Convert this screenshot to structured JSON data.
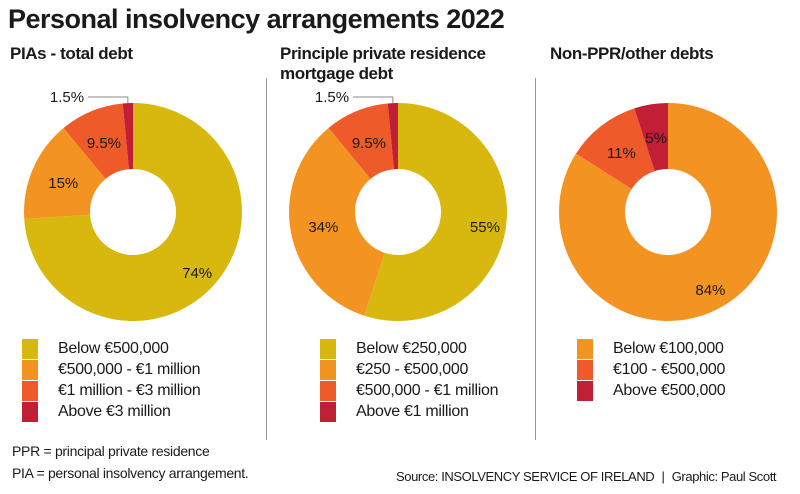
{
  "title": "Personal insolvency arrangements 2022",
  "colors": {
    "yellow": "#d8b80f",
    "orange": "#f39422",
    "redorange": "#ee5a2a",
    "darkred": "#c11f35"
  },
  "chart_data": [
    {
      "type": "pie",
      "subtitle": "PIAs - total debt",
      "categories": [
        "Below €500,000",
        "€500,000 - €1 million",
        "€1 million - €3 million",
        "Above €3 million"
      ],
      "values": [
        74,
        15,
        9.5,
        1.5
      ],
      "labels": [
        "74%",
        "15%",
        "9.5%",
        "1.5%"
      ],
      "colors": [
        "#d8b80f",
        "#f39422",
        "#ee5a2a",
        "#c11f35"
      ]
    },
    {
      "type": "pie",
      "subtitle": "Principle private residence mortgage debt",
      "categories": [
        "Below €250,000",
        "€250 - €500,000",
        "€500,000 - €1 million",
        "Above €1 million"
      ],
      "values": [
        55,
        34,
        9.5,
        1.5
      ],
      "labels": [
        "55%",
        "34%",
        "9.5%",
        "1.5%"
      ],
      "colors": [
        "#d8b80f",
        "#f39422",
        "#ee5a2a",
        "#c11f35"
      ]
    },
    {
      "type": "pie",
      "subtitle": "Non-PPR/other debts",
      "categories": [
        "Below €100,000",
        "€100 - €500,000",
        "Above €500,000"
      ],
      "values": [
        84,
        11,
        5
      ],
      "labels": [
        "84%",
        "11%",
        "5%"
      ],
      "colors": [
        "#f39422",
        "#ee5a2a",
        "#c11f35"
      ]
    }
  ],
  "notes": [
    "PPR = principal private residence",
    "PIA = personal insolvency arrangement."
  ],
  "source": "Source: INSOLVENCY SERVICE OF IRELAND",
  "credit": "Graphic: Paul Scott"
}
